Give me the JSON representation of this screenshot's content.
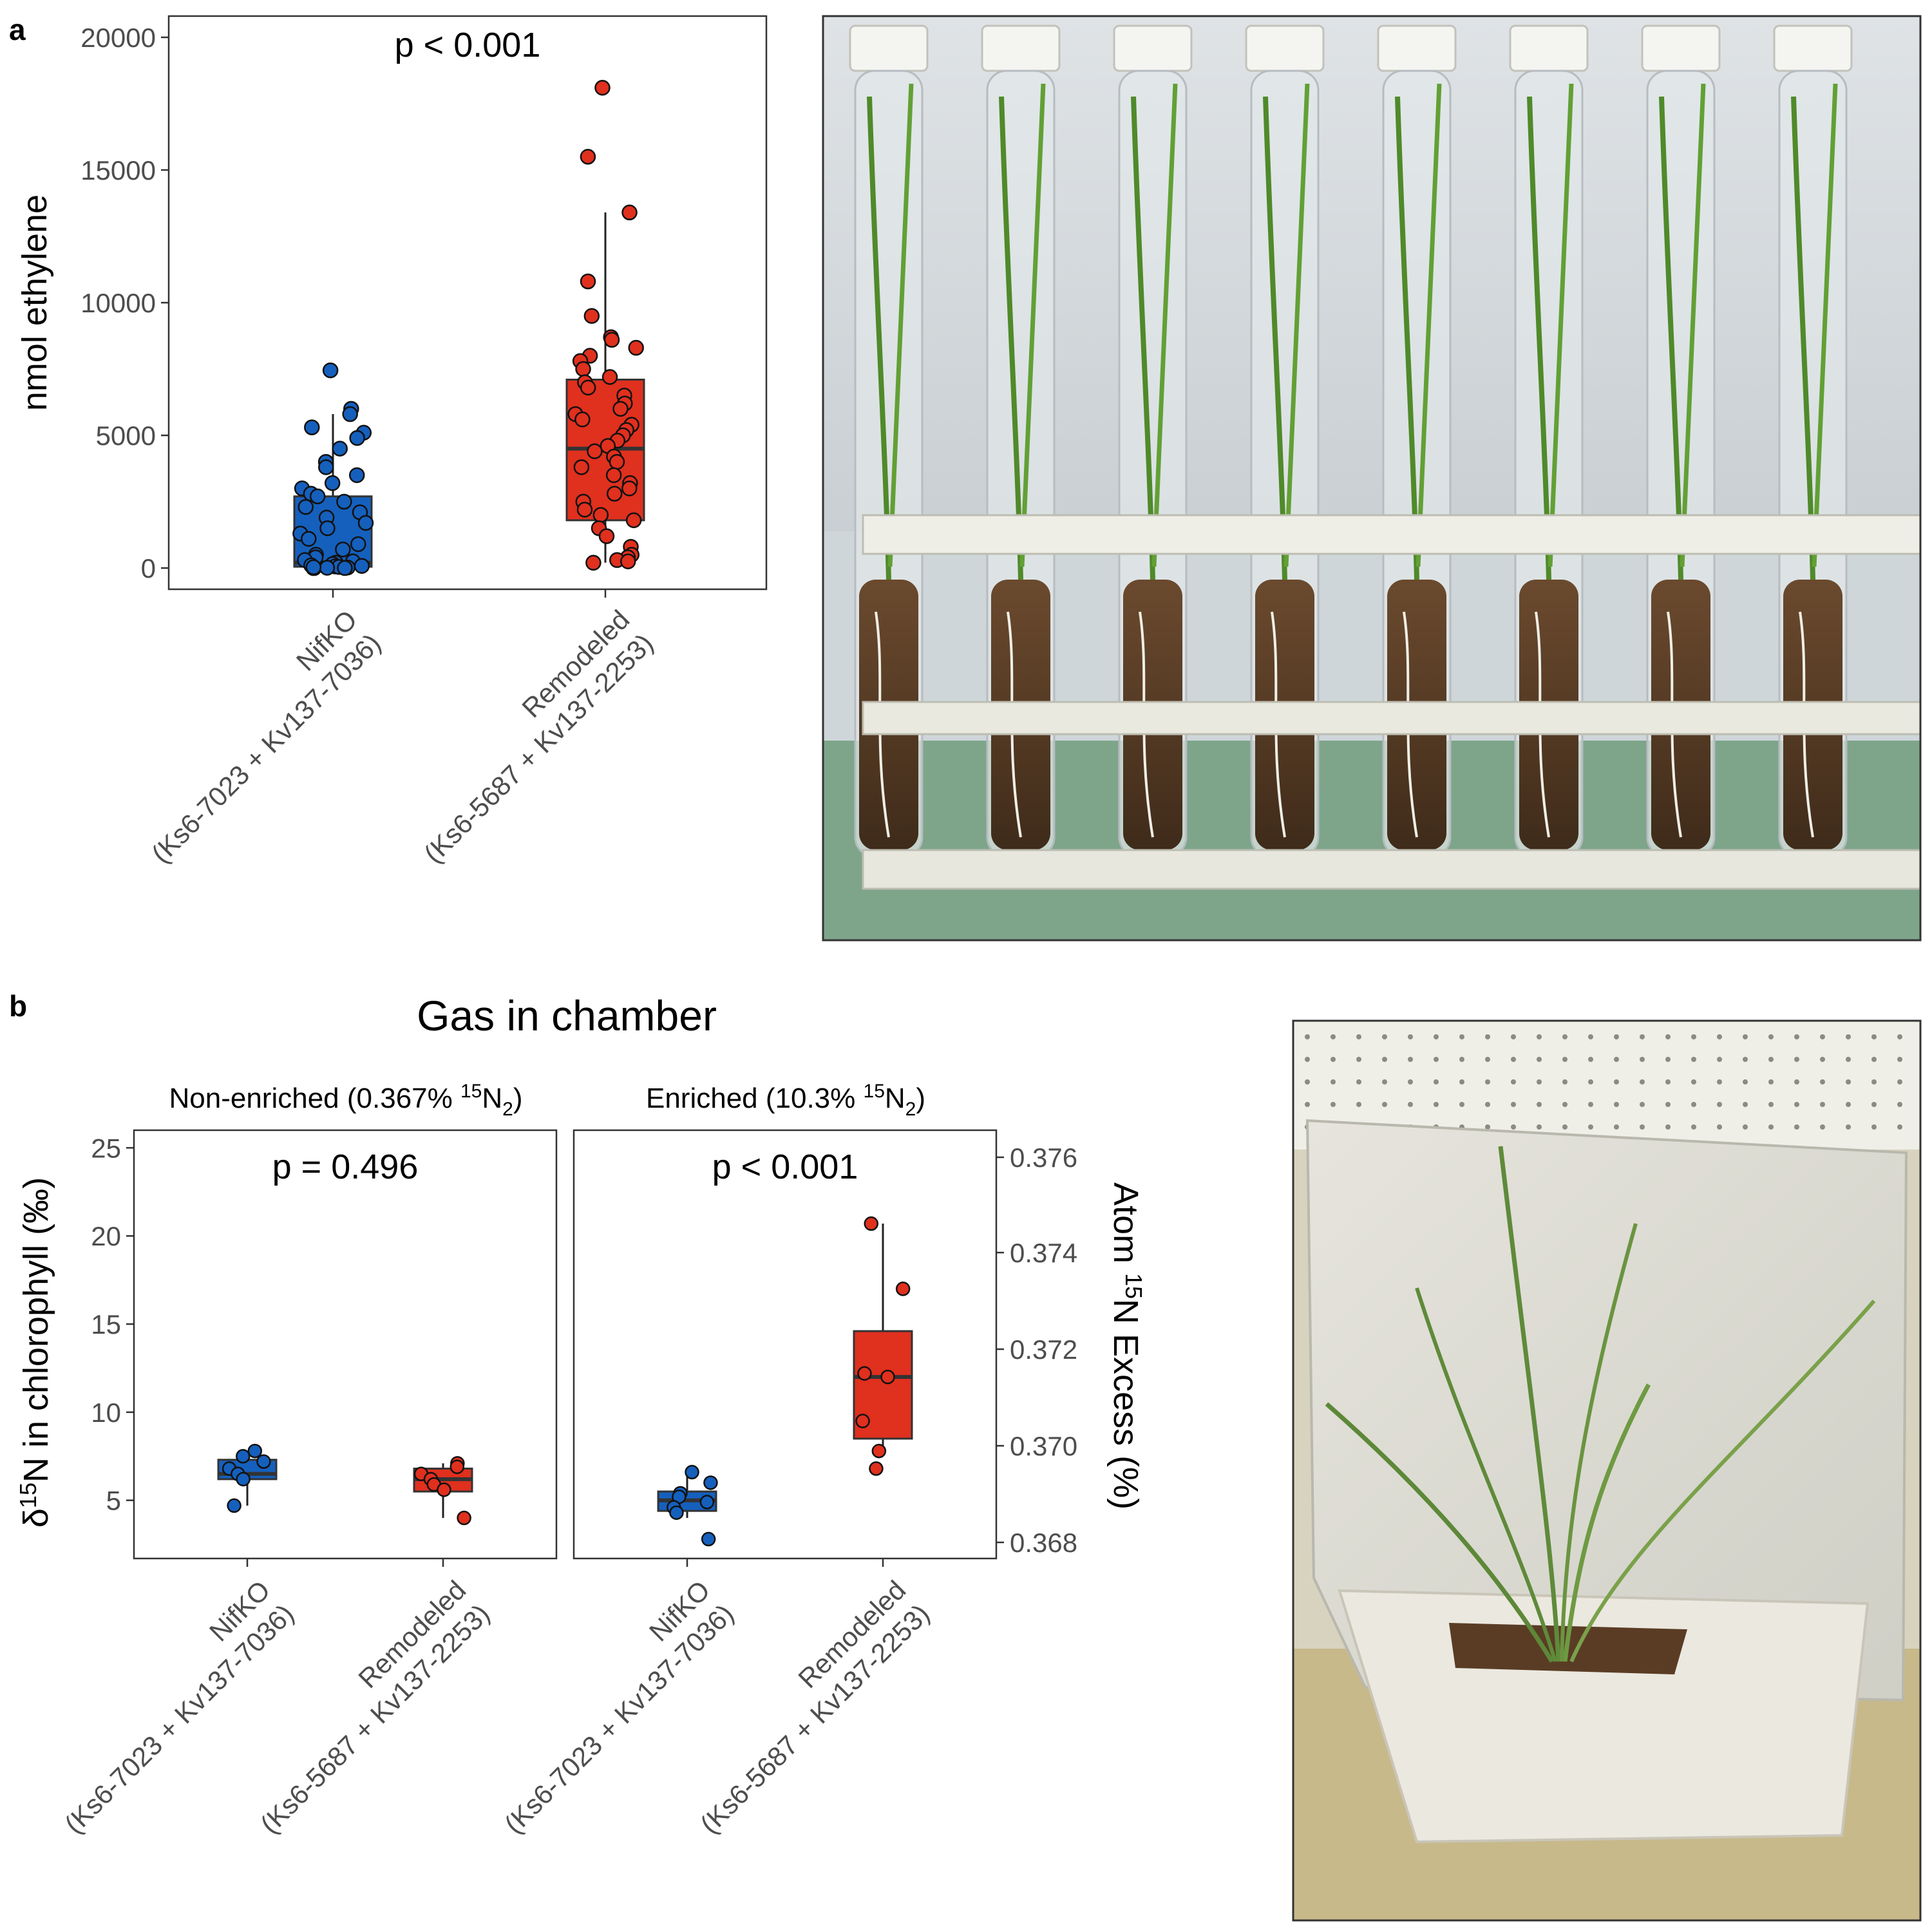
{
  "panel_a": {
    "letter": "a",
    "chart_data": {
      "type": "boxplot",
      "ylabel": "nmol ethylene",
      "ylim": [
        -800,
        20800
      ],
      "yticks": [
        0,
        5000,
        10000,
        15000,
        20000
      ],
      "annotation": "p < 0.001",
      "categories": [
        {
          "name": "NifKO",
          "strains": "(Ks6-7023 + Kv137-7036)",
          "color": "#1560bd",
          "box": {
            "q1": 50,
            "median": 200,
            "q3": 2700,
            "whisker_low": 0,
            "whisker_high": 5800
          },
          "points": [
            7450,
            6000,
            5800,
            5300,
            5100,
            4900,
            4500,
            4000,
            3800,
            3500,
            3200,
            3000,
            2800,
            2700,
            2500,
            2300,
            2100,
            1900,
            1700,
            1500,
            1300,
            1100,
            900,
            700,
            500,
            400,
            300,
            250,
            200,
            150,
            100,
            80,
            60,
            40,
            20,
            0,
            0,
            0,
            10,
            30
          ]
        },
        {
          "name": "Remodeled",
          "strains": "(Ks6-5687 + Kv137-2253)",
          "color": "#e0301e",
          "box": {
            "q1": 1800,
            "median": 4500,
            "q3": 7100,
            "whisker_low": 200,
            "whisker_high": 13400
          },
          "points": [
            18100,
            15500,
            13400,
            10800,
            9500,
            8700,
            8600,
            8300,
            8000,
            7800,
            7500,
            7200,
            7000,
            6800,
            6500,
            6200,
            6000,
            5800,
            5600,
            5400,
            5200,
            5000,
            4800,
            4600,
            4400,
            4200,
            4000,
            3800,
            3500,
            3200,
            3000,
            2800,
            2500,
            2200,
            2000,
            1800,
            1500,
            1200,
            800,
            500,
            400,
            300,
            250,
            200
          ]
        }
      ]
    }
  },
  "panel_b": {
    "letter": "b",
    "title": "Gas in chamber",
    "chart_data": {
      "type": "boxplot",
      "ylabel_left_prefix": "δ",
      "ylabel_left_sup": "15",
      "ylabel_left_rest": "N in chlorophyll (‰)",
      "ylabel_right_prefix": "Atom ",
      "ylabel_right_sup": "15",
      "ylabel_right_rest": "N Excess (%)",
      "ylim": [
        1.7,
        26.0
      ],
      "yticks_left": [
        5,
        10,
        15,
        20,
        25
      ],
      "yticks_right": [
        "0.368",
        "0.370",
        "0.372",
        "0.374",
        "0.376"
      ],
      "facets": [
        {
          "label_pre": "Non-enriched (0.367% ",
          "label_sup": "15",
          "label_mid": "N",
          "label_sub": "2",
          "label_post": ")",
          "annotation": "p = 0.496",
          "groups": [
            {
              "name": "NifKO",
              "strains": "(Ks6-7023 + Kv137-7036)",
              "color": "#1560bd",
              "box": {
                "q1": 6.2,
                "median": 6.5,
                "q3": 7.3,
                "whisker_low": 4.7,
                "whisker_high": 7.8
              },
              "points": [
                7.8,
                7.5,
                7.2,
                6.8,
                6.5,
                6.2,
                4.7
              ]
            },
            {
              "name": "Remodeled",
              "strains": "(Ks6-5687 + Kv137-2253)",
              "color": "#e0301e",
              "box": {
                "q1": 5.5,
                "median": 6.2,
                "q3": 6.8,
                "whisker_low": 4.0,
                "whisker_high": 7.1
              },
              "points": [
                7.1,
                6.9,
                6.5,
                6.2,
                5.9,
                5.6,
                4.0
              ]
            }
          ]
        },
        {
          "label_pre": "Enriched (10.3% ",
          "label_sup": "15",
          "label_mid": "N",
          "label_sub": "2",
          "label_post": ")",
          "annotation": "p < 0.001",
          "groups": [
            {
              "name": "NifKO",
              "strains": "(Ks6-7023 + Kv137-7036)",
              "color": "#1560bd",
              "box": {
                "q1": 4.4,
                "median": 5.0,
                "q3": 5.5,
                "whisker_low": 4.0,
                "whisker_high": 6.6
              },
              "points": [
                6.6,
                6.0,
                5.4,
                5.2,
                4.9,
                4.6,
                4.3,
                2.8
              ]
            },
            {
              "name": "Remodeled",
              "strains": "(Ks6-5687 + Kv137-2253)",
              "color": "#e0301e",
              "box": {
                "q1": 8.5,
                "median": 12.0,
                "q3": 14.6,
                "whisker_low": 7.5,
                "whisker_high": 20.7
              },
              "points": [
                20.7,
                17.0,
                12.2,
                12.0,
                9.5,
                7.8,
                6.8
              ]
            }
          ]
        }
      ]
    }
  },
  "photos": {
    "tubes_icon": "tube-rack-photo",
    "chamber_icon": "growth-chamber-photo"
  }
}
